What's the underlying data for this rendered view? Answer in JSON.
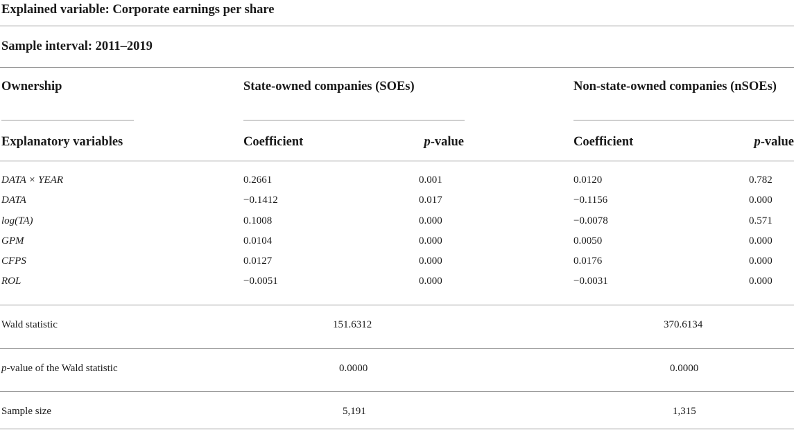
{
  "header": {
    "explained_variable": "Explained variable: Corporate earnings per share",
    "sample_interval": "Sample interval: 2011–2019"
  },
  "columns": {
    "ownership_label": "Ownership",
    "soe_group": "State-owned companies (SOEs)",
    "nsoe_group": "Non-state-owned companies (nSOEs)",
    "explanatory_label": "Explanatory variables",
    "coefficient_label": "Coefficient",
    "p_letter": "p",
    "value_suffix": "-value"
  },
  "rows": [
    {
      "variable": "DATA × YEAR",
      "soe_coef": "0.2661",
      "soe_p": "0.001",
      "nsoe_coef": "0.0120",
      "nsoe_p": "0.782"
    },
    {
      "variable": "DATA",
      "soe_coef": "−0.1412",
      "soe_p": "0.017",
      "nsoe_coef": "−0.1156",
      "nsoe_p": "0.000"
    },
    {
      "variable": "log(TA)",
      "soe_coef": "0.1008",
      "soe_p": "0.000",
      "nsoe_coef": "−0.0078",
      "nsoe_p": "0.571"
    },
    {
      "variable": "GPM",
      "soe_coef": "0.0104",
      "soe_p": "0.000",
      "nsoe_coef": "0.0050",
      "nsoe_p": "0.000"
    },
    {
      "variable": "CFPS",
      "soe_coef": "0.0127",
      "soe_p": "0.000",
      "nsoe_coef": "0.0176",
      "nsoe_p": "0.000"
    },
    {
      "variable": "ROL",
      "soe_coef": "−0.0051",
      "soe_p": "0.000",
      "nsoe_coef": "−0.0031",
      "nsoe_p": "0.000"
    }
  ],
  "stats": {
    "wald_label": "Wald statistic",
    "wald_soe": "151.6312",
    "wald_nsoe": "370.6134",
    "wald_p_letter": "p",
    "wald_p_rest": "-value of the Wald statistic",
    "wald_p_soe": "0.0000",
    "wald_p_nsoe": "0.0000",
    "sample_label": "Sample size",
    "sample_soe": "5,191",
    "sample_nsoe": "1,315"
  }
}
